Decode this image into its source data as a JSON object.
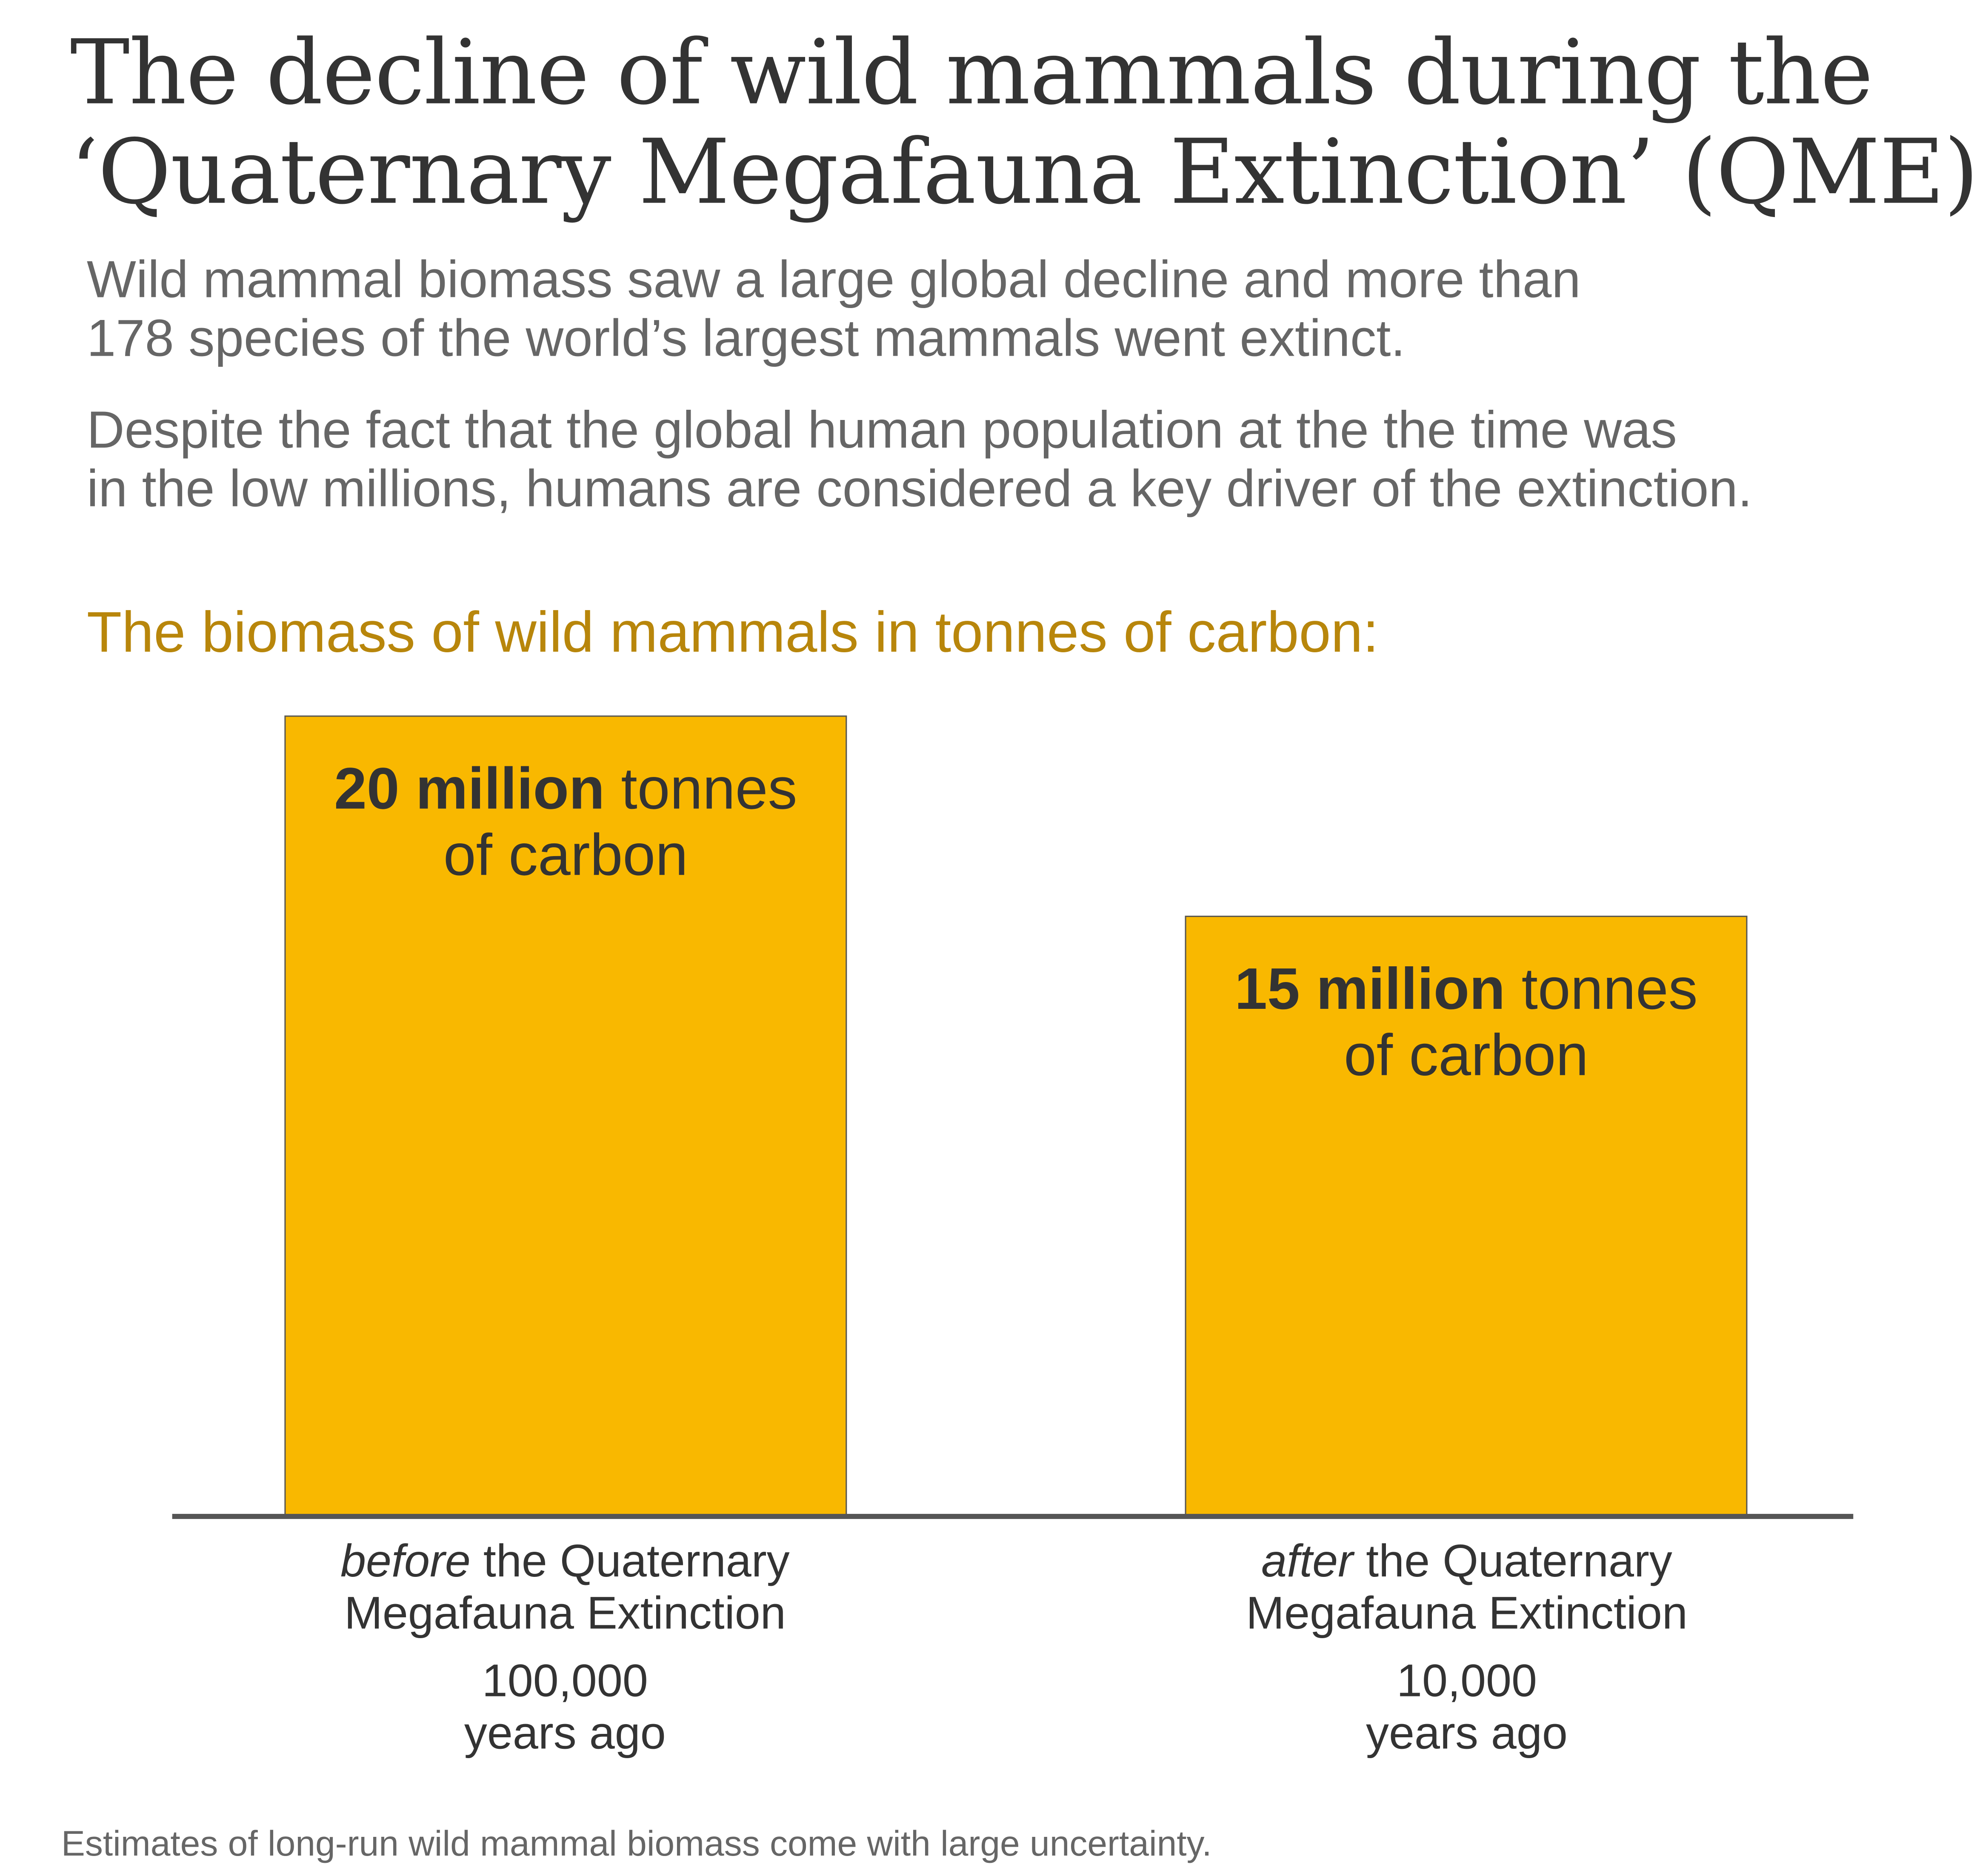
{
  "title": {
    "line1": "The decline of wild mammals during the",
    "line2": "‘Quaternary Megafauna Extinction’ (QME)"
  },
  "subtitle": {
    "p1_line1": "Wild mammal biomass saw a large global decline and more than",
    "p1_line2": "178 species of the world’s largest mammals went extinct.",
    "p2_line1": "Despite the fact that the global human population at the the time was",
    "p2_line2": "in the low millions, humans are considered a key driver of the extinction."
  },
  "footnote": "Estimates of long-run wild mammal biomass come with large uncertainty.",
  "chart_data": {
    "type": "bar",
    "title": "The biomass of wild mammals in tonnes of carbon:",
    "categories": [
      "before the Quaternary Megafauna Extinction",
      "after the Quaternary Megafauna Extinction"
    ],
    "values": [
      20,
      15
    ],
    "units": "million tonnes of carbon",
    "ylim": [
      0,
      20
    ],
    "bar_color": "#f9b800",
    "bars": [
      {
        "bold": "20 million",
        "rest": " tonnes",
        "line2": "of carbon",
        "cat_em": "before",
        "cat_rest": " the Quaternary",
        "cat_line2": "Megafauna Extinction",
        "years": "100,000",
        "years_line2": "years ago"
      },
      {
        "bold": "15 million",
        "rest": " tonnes",
        "line2": "of carbon",
        "cat_em": "after",
        "cat_rest": " the Quaternary",
        "cat_line2": "Megafauna Extinction",
        "years": "10,000",
        "years_line2": "years ago"
      }
    ]
  }
}
